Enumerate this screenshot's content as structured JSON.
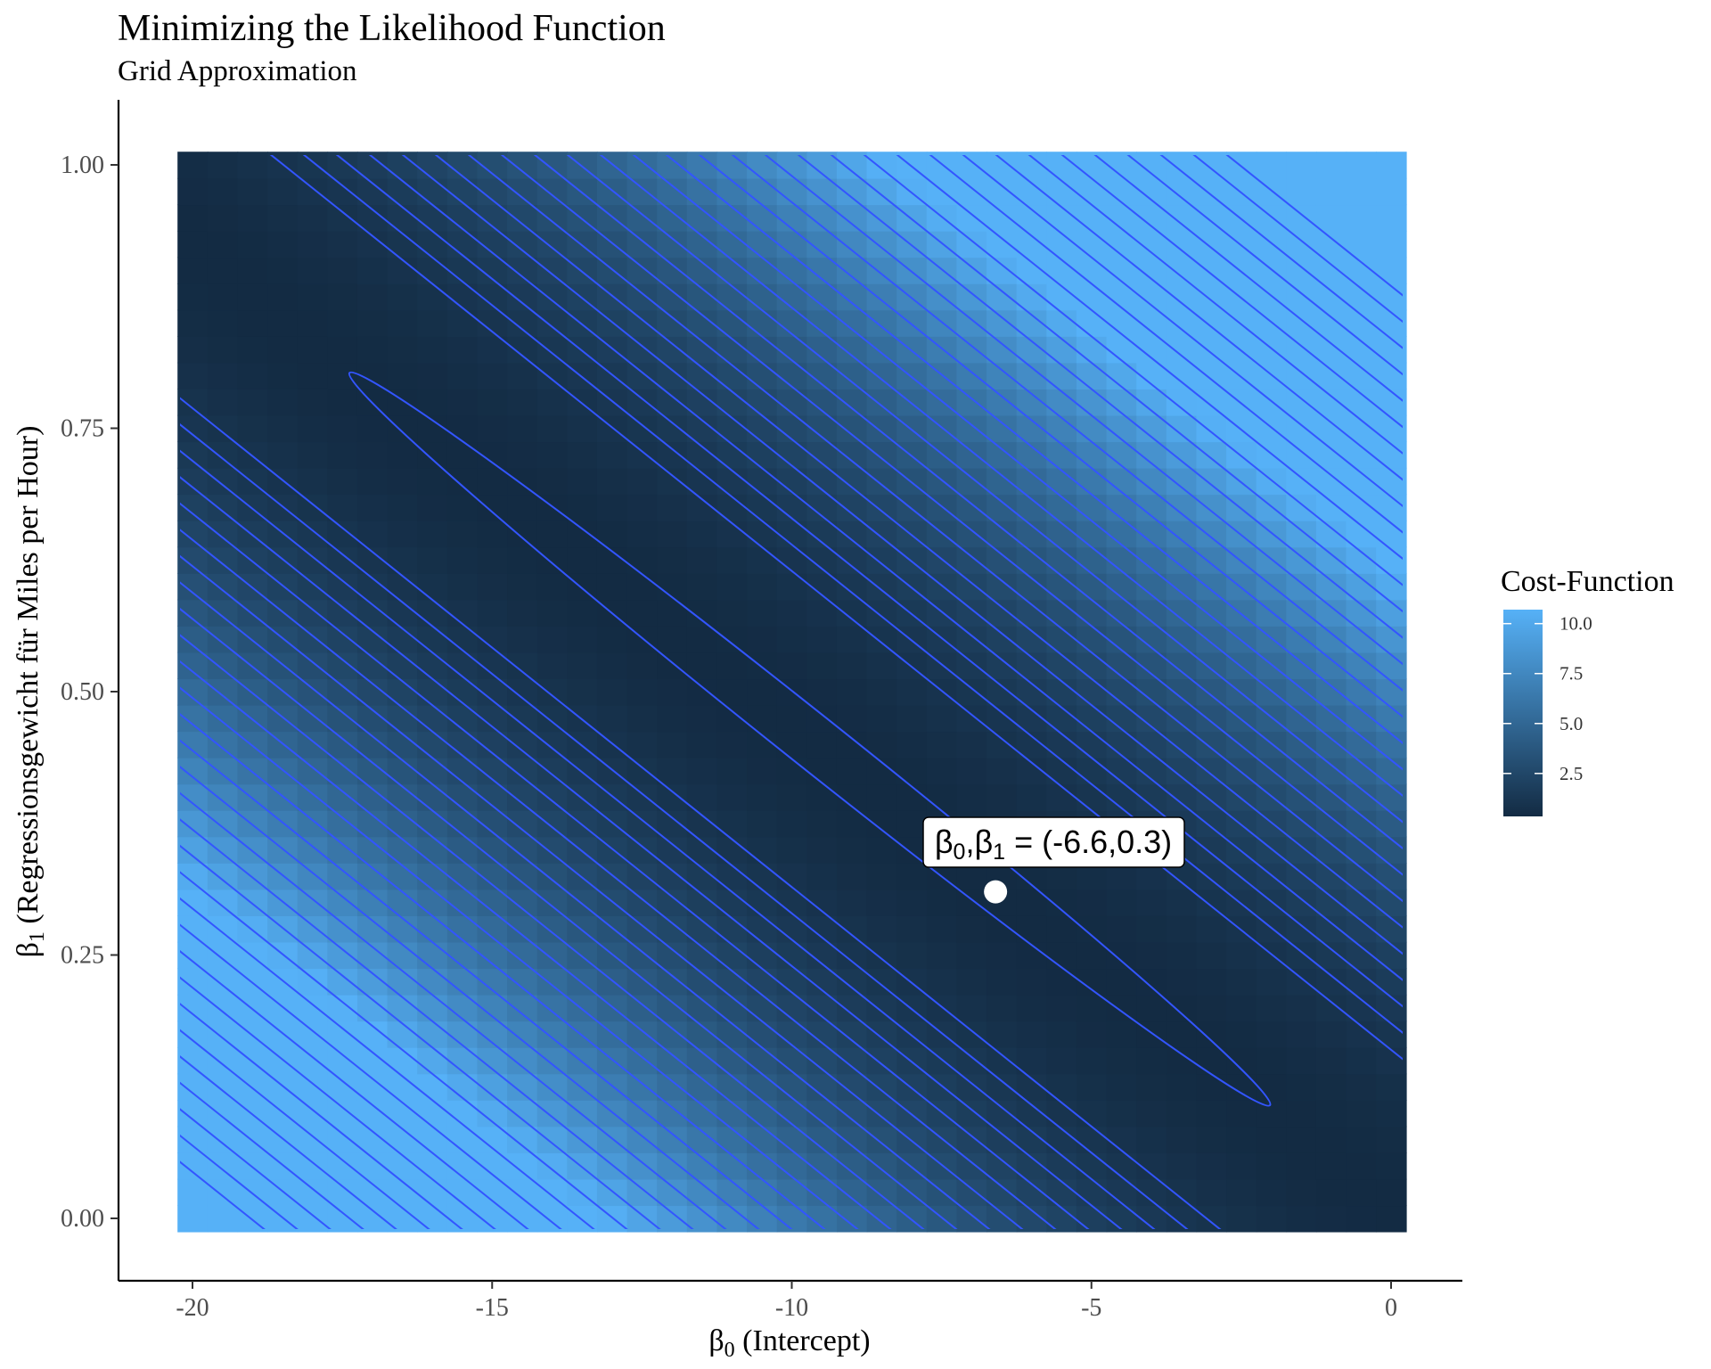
{
  "chart_data": {
    "type": "heatmap",
    "title": "Minimizing the Likelihood Function",
    "subtitle": "Grid Approximation",
    "xlabel_symbol": "β",
    "xlabel_sub": "0",
    "xlabel_rest": " (Intercept)",
    "ylabel_symbol": "β",
    "ylabel_sub": "1",
    "ylabel_rest": " (Regressionsgewicht für Miles per Hour)",
    "xlim": [
      -20,
      0
    ],
    "ylim": [
      0,
      1
    ],
    "x_ticks": [
      -20,
      -15,
      -10,
      -5,
      0
    ],
    "x_tick_labels": [
      "-20",
      "-15",
      "-10",
      "-5",
      "0"
    ],
    "y_ticks": [
      0,
      0.25,
      0.5,
      0.75,
      1
    ],
    "y_tick_labels": [
      "0.00",
      "0.25",
      "0.50",
      "0.75",
      "1.00"
    ],
    "fill_scale": {
      "name": "Cost-Function",
      "low_color": "#132B43",
      "high_color": "#56B1F7",
      "ticks": [
        2.5,
        5.0,
        7.5,
        10.0
      ],
      "tick_labels": [
        "2.5",
        "5.0",
        "7.5",
        "10.0"
      ],
      "range": [
        0.35,
        10.7
      ]
    },
    "contour_color": "#3355ff",
    "minimum_point": {
      "x": -6.6,
      "y": 0.31,
      "label_prefix": "β",
      "label_sub1": "0",
      "label_mid": ",β",
      "label_sub2": "1",
      "label_suffix": " = (-6.6,0.3)"
    },
    "legend_position": "right",
    "grid": false
  }
}
